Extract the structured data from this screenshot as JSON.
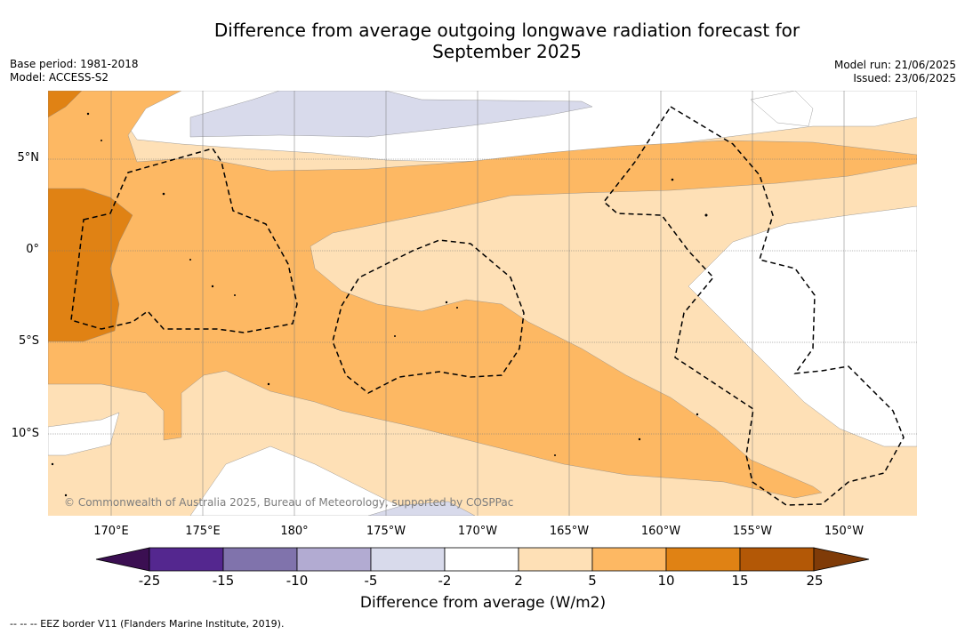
{
  "title_line1": "Difference from average outgoing longwave radiation forecast for",
  "title_line2": "September 2025",
  "base_period": "Base period: 1981-2018",
  "model": "Model: ACCESS-S2",
  "model_run": "Model run: 21/06/2025",
  "issued": "Issued: 23/06/2025",
  "lat_labels": [
    "5°N",
    "0°",
    "5°S",
    "10°S"
  ],
  "lon_labels": [
    "170°E",
    "175°E",
    "180°",
    "175°W",
    "170°W",
    "165°W",
    "160°W",
    "155°W",
    "150°W"
  ],
  "copyright": "© Commonwealth of Australia 2025, Bureau of Meteorology, supported by COSPPac",
  "colorbar": {
    "title": "Difference from average (W/m2)",
    "ticks": [
      "-25",
      "-15",
      "-10",
      "-5",
      "-2",
      "2",
      "5",
      "10",
      "15",
      "25"
    ],
    "colors": [
      "#3b0f52",
      "#54278f",
      "#8073ac",
      "#b2abd2",
      "#d8daeb",
      "#ffffff",
      "#fee0b6",
      "#fdb863",
      "#e08214",
      "#b35806",
      "#7f3b08"
    ]
  },
  "footnote": "--  --  -- EEZ border V11 (Flanders Marine Institute, 2019)."
}
